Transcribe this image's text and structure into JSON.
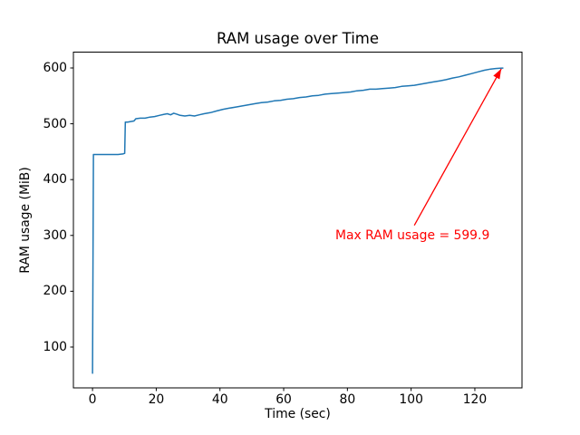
{
  "figure": {
    "background": "#ffffff",
    "text_color": "#000000"
  },
  "chart_data": {
    "type": "line",
    "title": "RAM usage over Time",
    "xlabel": "Time (sec)",
    "ylabel": "RAM usage (MiB)",
    "xlim": [
      -6.0,
      134.8
    ],
    "ylim": [
      26.9,
      628.4
    ],
    "xticks": [
      0,
      20,
      40,
      60,
      80,
      100,
      120
    ],
    "yticks": [
      100,
      200,
      300,
      400,
      500,
      600
    ],
    "grid": false,
    "legend": null,
    "series": [
      {
        "name": "RAM usage (MiB)",
        "color": "#1f77b4",
        "points": [
          [
            0,
            53
          ],
          [
            0.3,
            445
          ],
          [
            2,
            445
          ],
          [
            4,
            445
          ],
          [
            6,
            445
          ],
          [
            8,
            445
          ],
          [
            9.5,
            446
          ],
          [
            10.1,
            447
          ],
          [
            10.3,
            503
          ],
          [
            11,
            503
          ],
          [
            12,
            504
          ],
          [
            13,
            505
          ],
          [
            13.6,
            509
          ],
          [
            15,
            510
          ],
          [
            16.5,
            510
          ],
          [
            18,
            512
          ],
          [
            19.5,
            513
          ],
          [
            21,
            515
          ],
          [
            22.5,
            517
          ],
          [
            23.5,
            518
          ],
          [
            24.5,
            516
          ],
          [
            25.5,
            519
          ],
          [
            26.5,
            517
          ],
          [
            27.5,
            515
          ],
          [
            29,
            514
          ],
          [
            30.5,
            515
          ],
          [
            32,
            514
          ],
          [
            33.5,
            516
          ],
          [
            35,
            518
          ],
          [
            37,
            520
          ],
          [
            39,
            523
          ],
          [
            41,
            526
          ],
          [
            43,
            528
          ],
          [
            45,
            530
          ],
          [
            47,
            532
          ],
          [
            49,
            534
          ],
          [
            51,
            536
          ],
          [
            53,
            538
          ],
          [
            55,
            539
          ],
          [
            57,
            541
          ],
          [
            59,
            542
          ],
          [
            61,
            544
          ],
          [
            63,
            545
          ],
          [
            65,
            547
          ],
          [
            67,
            548
          ],
          [
            69,
            550
          ],
          [
            71,
            551
          ],
          [
            73,
            553
          ],
          [
            75,
            554
          ],
          [
            77,
            555
          ],
          [
            79,
            556
          ],
          [
            81,
            557
          ],
          [
            83,
            559
          ],
          [
            85,
            560
          ],
          [
            87,
            562
          ],
          [
            89,
            562
          ],
          [
            91,
            563
          ],
          [
            93,
            564
          ],
          [
            95,
            565
          ],
          [
            97,
            567
          ],
          [
            99,
            568
          ],
          [
            101,
            569
          ],
          [
            103,
            571
          ],
          [
            105,
            573
          ],
          [
            107,
            575
          ],
          [
            109,
            577
          ],
          [
            111,
            579
          ],
          [
            113,
            582
          ],
          [
            115,
            584
          ],
          [
            117,
            587
          ],
          [
            119,
            590
          ],
          [
            121,
            593
          ],
          [
            123,
            596
          ],
          [
            125,
            598
          ],
          [
            126.5,
            599
          ],
          [
            128,
            599.6
          ],
          [
            128.8,
            599.9
          ]
        ]
      }
    ],
    "annotation": {
      "text": "Max RAM usage = 599.9",
      "color": "#ff0000",
      "arrow_from": [
        101,
        318
      ],
      "arrow_to": [
        128.3,
        598.5
      ]
    },
    "max_value": 599.9
  }
}
